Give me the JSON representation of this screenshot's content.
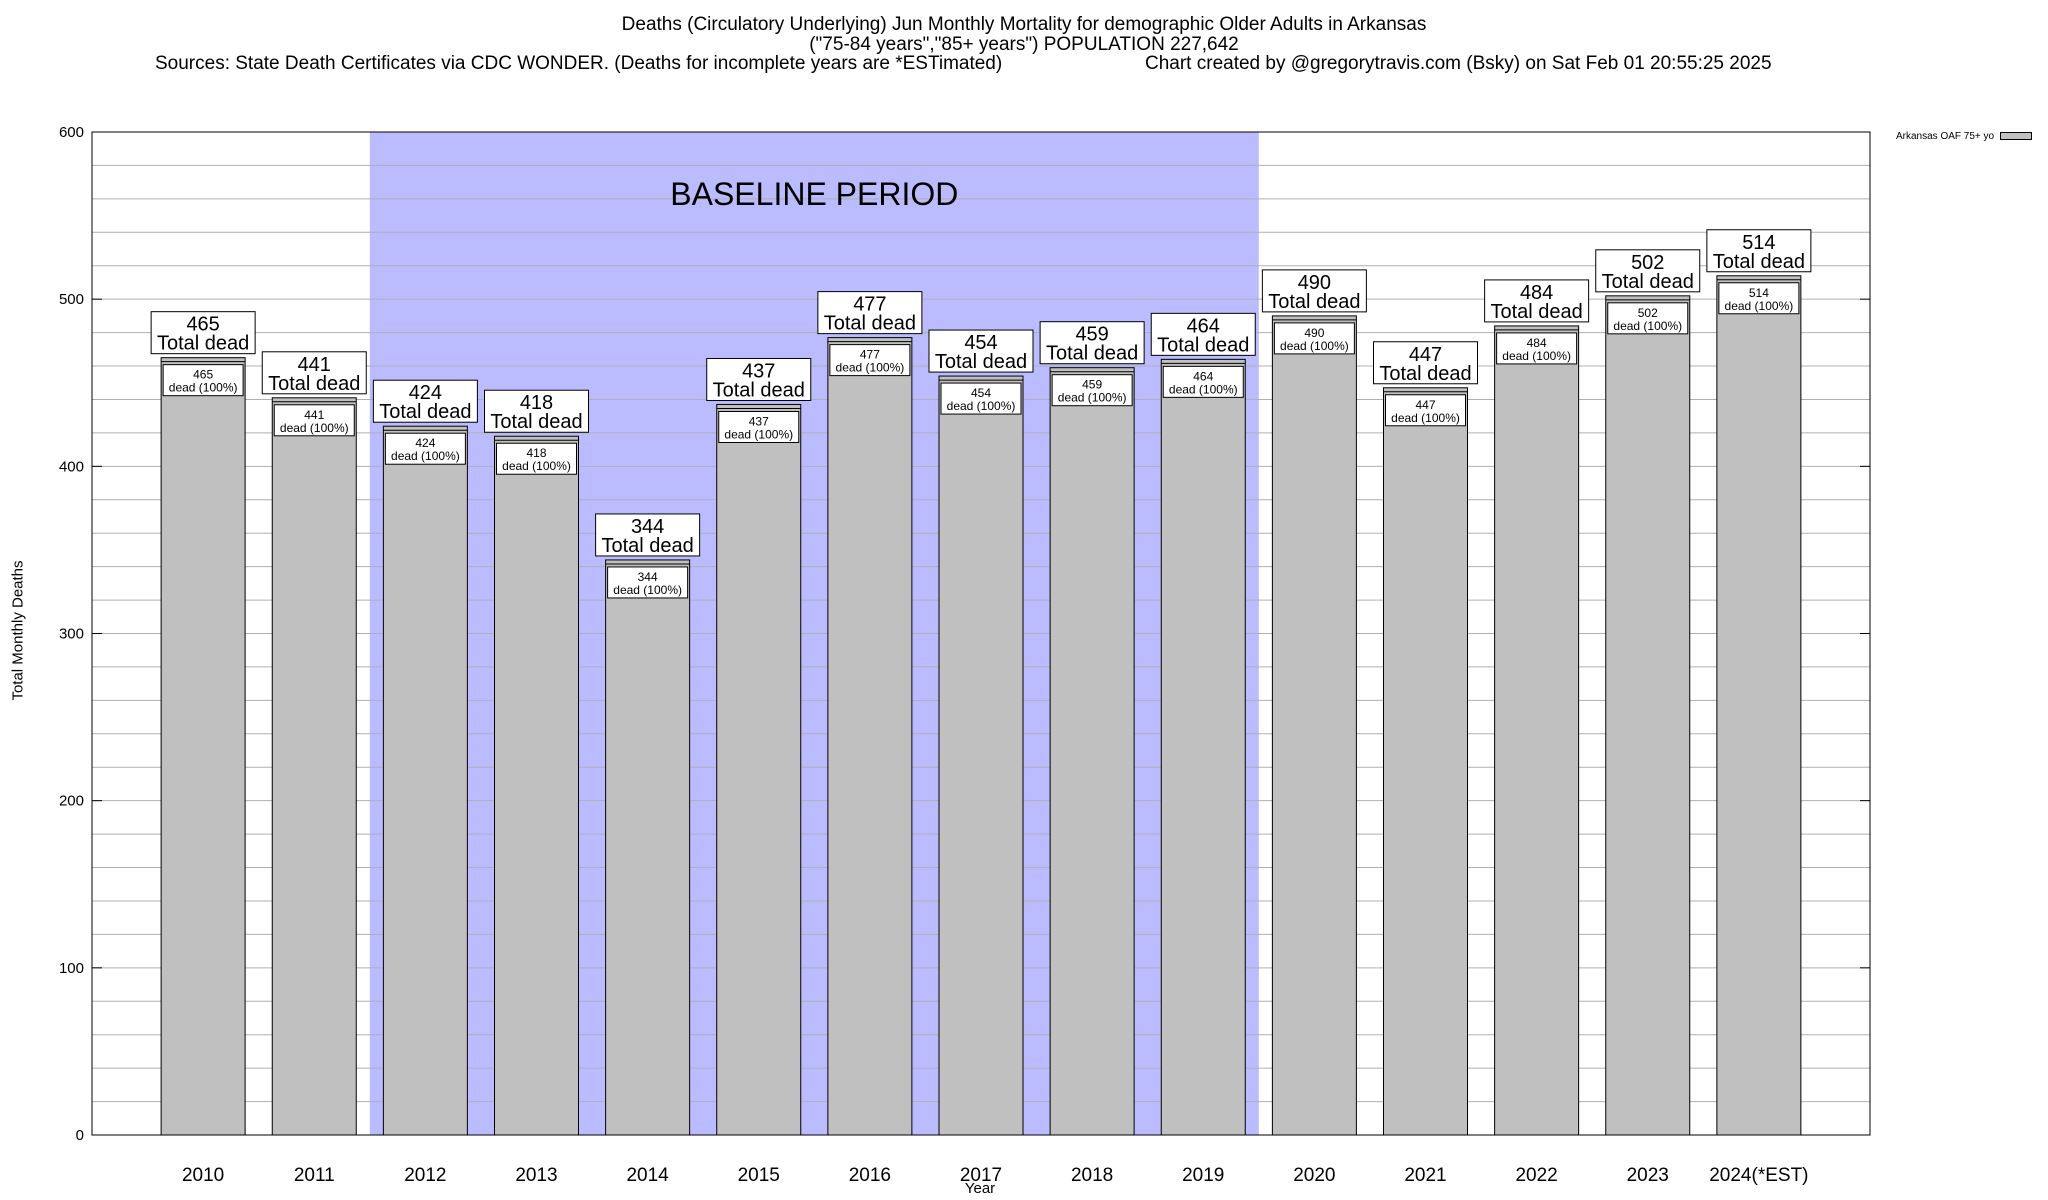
{
  "header": {
    "title_line1": "Deaths (Circulatory Underlying) Jun Monthly Mortality for demographic Older Adults in Arkansas",
    "title_line2": "(\"75-84 years\",\"85+ years\") POPULATION 227,642",
    "sources": "Sources: State Death Certificates via CDC WONDER. (Deaths for incomplete years are *ESTimated)",
    "credit": "Chart created by @gregorytravis.com (Bsky) on Sat Feb 01 20:55:25 2025"
  },
  "chart_data": {
    "type": "bar",
    "title": "Deaths (Circulatory Underlying) Jun Monthly Mortality for demographic Older Adults in Arkansas",
    "xlabel": "Year",
    "ylabel": "Total Monthly Deaths",
    "ylim": [
      0,
      600
    ],
    "yticks": [
      0,
      100,
      200,
      300,
      400,
      500,
      600
    ],
    "grid": true,
    "legend_position": "top-right",
    "categories": [
      "2010",
      "2011",
      "2012",
      "2013",
      "2014",
      "2015",
      "2016",
      "2017",
      "2018",
      "2019",
      "2020",
      "2021",
      "2022",
      "2023",
      "2024(*EST)"
    ],
    "series": [
      {
        "name": "Arkansas OAF 75+ yo",
        "color": "#c0c0c0",
        "values": [
          465,
          441,
          424,
          418,
          344,
          437,
          477,
          454,
          459,
          464,
          490,
          447,
          484,
          502,
          514
        ]
      }
    ],
    "total_label_text": "Total dead",
    "inner_label_text": "dead (100%)",
    "baseline": {
      "label": "BASELINE PERIOD",
      "start": "2012",
      "end": "2019",
      "color": "#bbbbff"
    }
  }
}
